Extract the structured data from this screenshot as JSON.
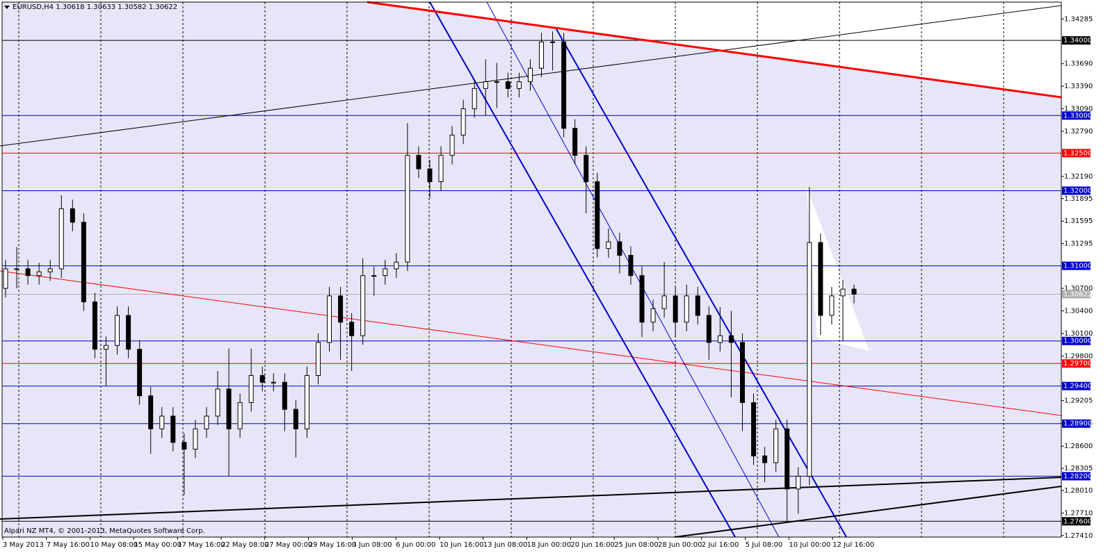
{
  "chart_data": {
    "type": "candlestick",
    "title": "EURUSD,H4  1.30618 1.30633 1.30582 1.30622",
    "footer": "Alpari NZ MT4, © 2001-2013, MetaQuotes Software Corp.",
    "categories": [
      "3 May 2013",
      "7 May 16:00",
      "10 May 08:00",
      "15 May 00:00",
      "17 May 16:00",
      "22 May 08:00",
      "27 May 00:00",
      "29 May 16:00",
      "3 Jun 08:00",
      "6 Jun 00:00",
      "10 Jun 16:00",
      "13 Jun 08:00",
      "18 Jun 00:00",
      "20 Jun 16:00",
      "25 Jun 08:00",
      "28 Jun 00:00",
      "2 Jul 16:00",
      "5 Jul 08:00",
      "10 Jul 00:00",
      "12 Jul 16:00"
    ],
    "candles": {
      "open": [
        1.307,
        1.3096,
        1.3096,
        1.3087,
        1.3092,
        1.3096,
        1.3176,
        1.3158,
        1.3052,
        1.2989,
        1.2994,
        1.3034,
        1.2989,
        1.2927,
        1.2883,
        1.29,
        1.2865,
        1.2856,
        1.2883,
        1.29,
        1.2936,
        1.2883,
        1.2918,
        1.2954,
        1.2945,
        1.2945,
        1.2909,
        1.2883,
        1.2954,
        1.2998,
        1.306,
        1.3025,
        1.3007,
        1.3087,
        1.3087,
        1.3096,
        1.3105,
        1.3247,
        1.3229,
        1.3212,
        1.3247,
        1.3274,
        1.3309,
        1.3336,
        1.3345,
        1.3345,
        1.3336,
        1.3345,
        1.3363,
        1.3398,
        1.3398,
        1.3283,
        1.3247,
        1.3212,
        1.3123,
        1.3132,
        1.3114,
        1.3087,
        1.3025,
        1.3043,
        1.306,
        1.3025,
        1.306,
        1.3034,
        1.2998,
        1.3007,
        1.2998,
        1.2918,
        1.2847,
        1.2838,
        1.2883,
        1.2803,
        1.282,
        1.3131,
        1.3034,
        1.306,
        1.3069
      ],
      "high": [
        1.3108,
        1.3125,
        1.3108,
        1.3104,
        1.3108,
        1.3194,
        1.3188,
        1.317,
        1.3064,
        1.3006,
        1.3046,
        1.3046,
        1.3001,
        1.2939,
        1.2912,
        1.2912,
        1.2877,
        1.2895,
        1.2912,
        1.296,
        1.299,
        1.293,
        1.299,
        1.2966,
        1.2957,
        1.2957,
        1.2921,
        1.2966,
        1.301,
        1.3072,
        1.3072,
        1.3037,
        1.311,
        1.3099,
        1.3108,
        1.3117,
        1.329,
        1.3259,
        1.3241,
        1.3259,
        1.3286,
        1.3321,
        1.3348,
        1.3375,
        1.337,
        1.3357,
        1.3357,
        1.3375,
        1.341,
        1.3412,
        1.341,
        1.3295,
        1.3259,
        1.3224,
        1.315,
        1.3144,
        1.3126,
        1.3099,
        1.3055,
        1.3105,
        1.3072,
        1.3075,
        1.3072,
        1.3046,
        1.3045,
        1.304,
        1.301,
        1.293,
        1.2859,
        1.2895,
        1.2895,
        1.2832,
        1.3205,
        1.3143,
        1.3072,
        1.3081,
        1.3075
      ],
      "low": [
        1.3058,
        1.307,
        1.3075,
        1.3075,
        1.308,
        1.3084,
        1.3146,
        1.304,
        1.2977,
        1.294,
        1.2982,
        1.2977,
        1.2915,
        1.285,
        1.2871,
        1.2853,
        1.2795,
        1.2844,
        1.2871,
        1.2888,
        1.282,
        1.2871,
        1.2906,
        1.2933,
        1.2933,
        1.288,
        1.2845,
        1.2871,
        1.2942,
        1.2986,
        1.2975,
        1.296,
        1.2995,
        1.306,
        1.3075,
        1.3084,
        1.3093,
        1.3217,
        1.319,
        1.32,
        1.3235,
        1.3262,
        1.3297,
        1.33,
        1.331,
        1.3324,
        1.3324,
        1.3333,
        1.3351,
        1.336,
        1.3271,
        1.3235,
        1.317,
        1.3111,
        1.3111,
        1.309,
        1.3075,
        1.3005,
        1.3013,
        1.3031,
        1.3005,
        1.3013,
        1.3022,
        1.2975,
        1.2986,
        1.2925,
        1.288,
        1.2835,
        1.2812,
        1.2826,
        1.276,
        1.277,
        1.2808,
        1.3008,
        1.3022,
        1.3,
        1.305
      ],
      "close": [
        1.3096,
        1.3096,
        1.3087,
        1.3092,
        1.3096,
        1.3176,
        1.3158,
        1.3052,
        1.2989,
        1.2994,
        1.3034,
        1.2989,
        1.2927,
        1.2883,
        1.29,
        1.2865,
        1.2856,
        1.2883,
        1.29,
        1.2936,
        1.2883,
        1.2918,
        1.2954,
        1.2945,
        1.2945,
        1.2909,
        1.2883,
        1.2954,
        1.2998,
        1.306,
        1.3025,
        1.3007,
        1.3087,
        1.3087,
        1.3096,
        1.3105,
        1.3247,
        1.3229,
        1.3212,
        1.3247,
        1.3274,
        1.3309,
        1.3336,
        1.3345,
        1.3345,
        1.3336,
        1.3345,
        1.3363,
        1.3398,
        1.3398,
        1.3283,
        1.3247,
        1.3212,
        1.3123,
        1.3132,
        1.3114,
        1.3087,
        1.3025,
        1.3043,
        1.306,
        1.3025,
        1.306,
        1.3034,
        1.2998,
        1.3007,
        1.2998,
        1.2918,
        1.2847,
        1.2838,
        1.2883,
        1.2803,
        1.282,
        1.3131,
        1.3034,
        1.306,
        1.3069,
        1.30622
      ]
    },
    "up_color": "#ffffff",
    "down_color": "#000000",
    "ylim": [
      1.2739,
      1.3451
    ],
    "yticks": [
      {
        "value": 1.34285,
        "label": "1.34285"
      },
      {
        "value": 1.3369,
        "label": "1.33690"
      },
      {
        "value": 1.3339,
        "label": "1.33390"
      },
      {
        "value": 1.3309,
        "label": "1.33090"
      },
      {
        "value": 1.3279,
        "label": "1.32790"
      },
      {
        "value": 1.3219,
        "label": "1.32190"
      },
      {
        "value": 1.31895,
        "label": "1.31895"
      },
      {
        "value": 1.31595,
        "label": "1.31595"
      },
      {
        "value": 1.31295,
        "label": "1.31295"
      },
      {
        "value": 1.307,
        "label": "1.30700"
      },
      {
        "value": 1.304,
        "label": "1.30400"
      },
      {
        "value": 1.301,
        "label": "1.30100"
      },
      {
        "value": 1.298,
        "label": "1.29800"
      },
      {
        "value": 1.29205,
        "label": "1.29205"
      },
      {
        "value": 1.28905,
        "label": "1.28905"
      },
      {
        "value": 1.286,
        "label": "1.28600"
      },
      {
        "value": 1.28305,
        "label": "1.28305"
      },
      {
        "value": 1.2801,
        "label": "1.28010"
      },
      {
        "value": 1.2771,
        "label": "1.27710"
      },
      {
        "value": 1.2741,
        "label": "1.27410"
      }
    ],
    "levels": [
      {
        "value": 1.34,
        "label": "1.34000",
        "color": "#000000"
      },
      {
        "value": 1.33,
        "label": "1.33000",
        "color": "#0000cd"
      },
      {
        "value": 1.325,
        "label": "1.32500",
        "color": "#ff0000"
      },
      {
        "value": 1.32,
        "label": "1.32000",
        "color": "#0000cd"
      },
      {
        "value": 1.31,
        "label": "1.31000",
        "color": "#0000cd"
      },
      {
        "value": 1.30622,
        "label": "1.30622",
        "color": "#b0b0b0"
      },
      {
        "value": 1.3,
        "label": "1.30000",
        "color": "#0000cd"
      },
      {
        "value": 1.297,
        "label": "1.29700",
        "color": "#ff0000"
      },
      {
        "value": 1.294,
        "label": "1.29400",
        "color": "#0000cd"
      },
      {
        "value": 1.289,
        "label": "1.28900",
        "color": "#0000cd"
      },
      {
        "value": 1.282,
        "label": "1.28200",
        "color": "#0000cd"
      },
      {
        "value": 1.276,
        "label": "1.27600",
        "color": "#000000"
      }
    ],
    "grid": true
  }
}
